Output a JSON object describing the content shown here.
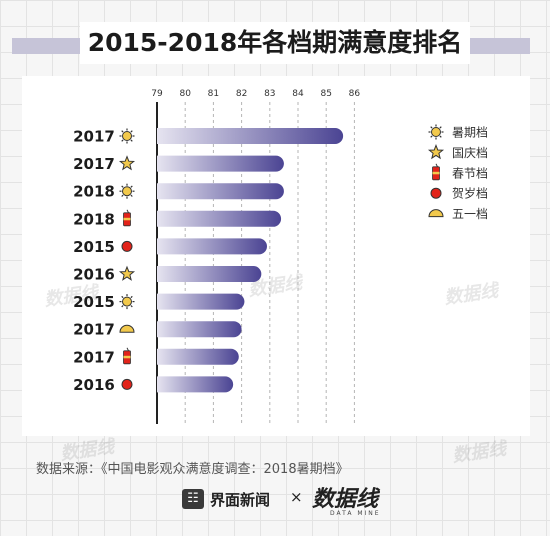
{
  "title": "2015-2018年各档期满意度排名",
  "source_text": "数据来源：《中国电影观众满意度调查：2018暑期档》",
  "footer": {
    "brand1": "界面新闻",
    "separator": "×",
    "brand2": "数据线",
    "brand2_sub": "DATA MINE",
    "watermark": "数据线"
  },
  "colors": {
    "bar": "#4b4493",
    "bar_light": "#e6e4f0",
    "accent_yellow": "#f2c94c",
    "accent_red": "#e2231a"
  },
  "chart_data": {
    "type": "bar",
    "orientation": "horizontal",
    "title": "2015-2018年各档期满意度排名",
    "x_ticks": [
      79,
      80,
      81,
      82,
      83,
      84,
      85,
      86
    ],
    "xlim": [
      79,
      86
    ],
    "grid": true,
    "legend_position": "right",
    "legend": [
      {
        "label": "暑期档",
        "icon": "sun-icon"
      },
      {
        "label": "国庆档",
        "icon": "star-icon"
      },
      {
        "label": "春节档",
        "icon": "firecracker-icon"
      },
      {
        "label": "贺岁档",
        "icon": "red-circle-icon"
      },
      {
        "label": "五一档",
        "icon": "half-sun-icon"
      }
    ],
    "bars": [
      {
        "year": "2017",
        "period": "暑期档",
        "icon": "sun-icon",
        "value": 85.6
      },
      {
        "year": "2017",
        "period": "国庆档",
        "icon": "star-icon",
        "value": 83.5
      },
      {
        "year": "2018",
        "period": "暑期档",
        "icon": "sun-icon",
        "value": 83.5
      },
      {
        "year": "2018",
        "period": "春节档",
        "icon": "firecracker-icon",
        "value": 83.4
      },
      {
        "year": "2015",
        "period": "贺岁档",
        "icon": "red-circle-icon",
        "value": 82.9
      },
      {
        "year": "2016",
        "period": "国庆档",
        "icon": "star-icon",
        "value": 82.7
      },
      {
        "year": "2015",
        "period": "暑期档",
        "icon": "sun-icon",
        "value": 82.1
      },
      {
        "year": "2017",
        "period": "五一档",
        "icon": "half-sun-icon",
        "value": 82.0
      },
      {
        "year": "2017",
        "period": "春节档",
        "icon": "firecracker-icon",
        "value": 81.9
      },
      {
        "year": "2016",
        "period": "贺岁档",
        "icon": "red-circle-icon",
        "value": 81.7
      }
    ]
  }
}
